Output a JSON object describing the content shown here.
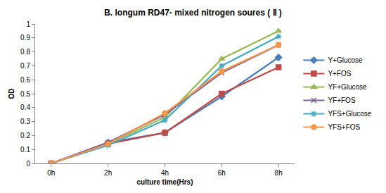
{
  "chart_data": {
    "type": "line",
    "title": "B. longum RD47- mixed nitrogen soures ( Ⅱ )",
    "x_label": "culture time(Hrs)",
    "y_label": "OD",
    "categories": [
      "0h",
      "2h",
      "4h",
      "6h",
      "8h"
    ],
    "series": [
      {
        "name": "Y+Glucose",
        "color": "#4A7EBB",
        "marker": "diamond",
        "values": [
          0,
          0.15,
          0.22,
          0.48,
          0.76
        ]
      },
      {
        "name": "Y+FOS",
        "color": "#BE4B48",
        "marker": "square",
        "values": [
          0,
          0.14,
          0.22,
          0.5,
          0.69
        ]
      },
      {
        "name": "YF+Glucose",
        "color": "#98B954",
        "marker": "triangle",
        "values": [
          0,
          0.14,
          0.33,
          0.75,
          0.95
        ]
      },
      {
        "name": "YF+FOS",
        "color": "#7D60A0",
        "marker": "x",
        "values": [
          0,
          0.15,
          0.35,
          0.65,
          0.85
        ]
      },
      {
        "name": "YFS+Glucose",
        "color": "#46AAC5",
        "marker": "asterisk",
        "values": [
          0,
          0.13,
          0.31,
          0.7,
          0.91
        ]
      },
      {
        "name": "YFS+FOS",
        "color": "#F79646",
        "marker": "circle",
        "values": [
          0,
          0.14,
          0.36,
          0.66,
          0.85
        ]
      }
    ],
    "ylim": [
      0,
      1
    ],
    "yticks": [
      0,
      0.1,
      0.2,
      0.3,
      0.4,
      0.5,
      0.6,
      0.7,
      0.8,
      0.9,
      1
    ],
    "grid": false,
    "legend": "right"
  }
}
